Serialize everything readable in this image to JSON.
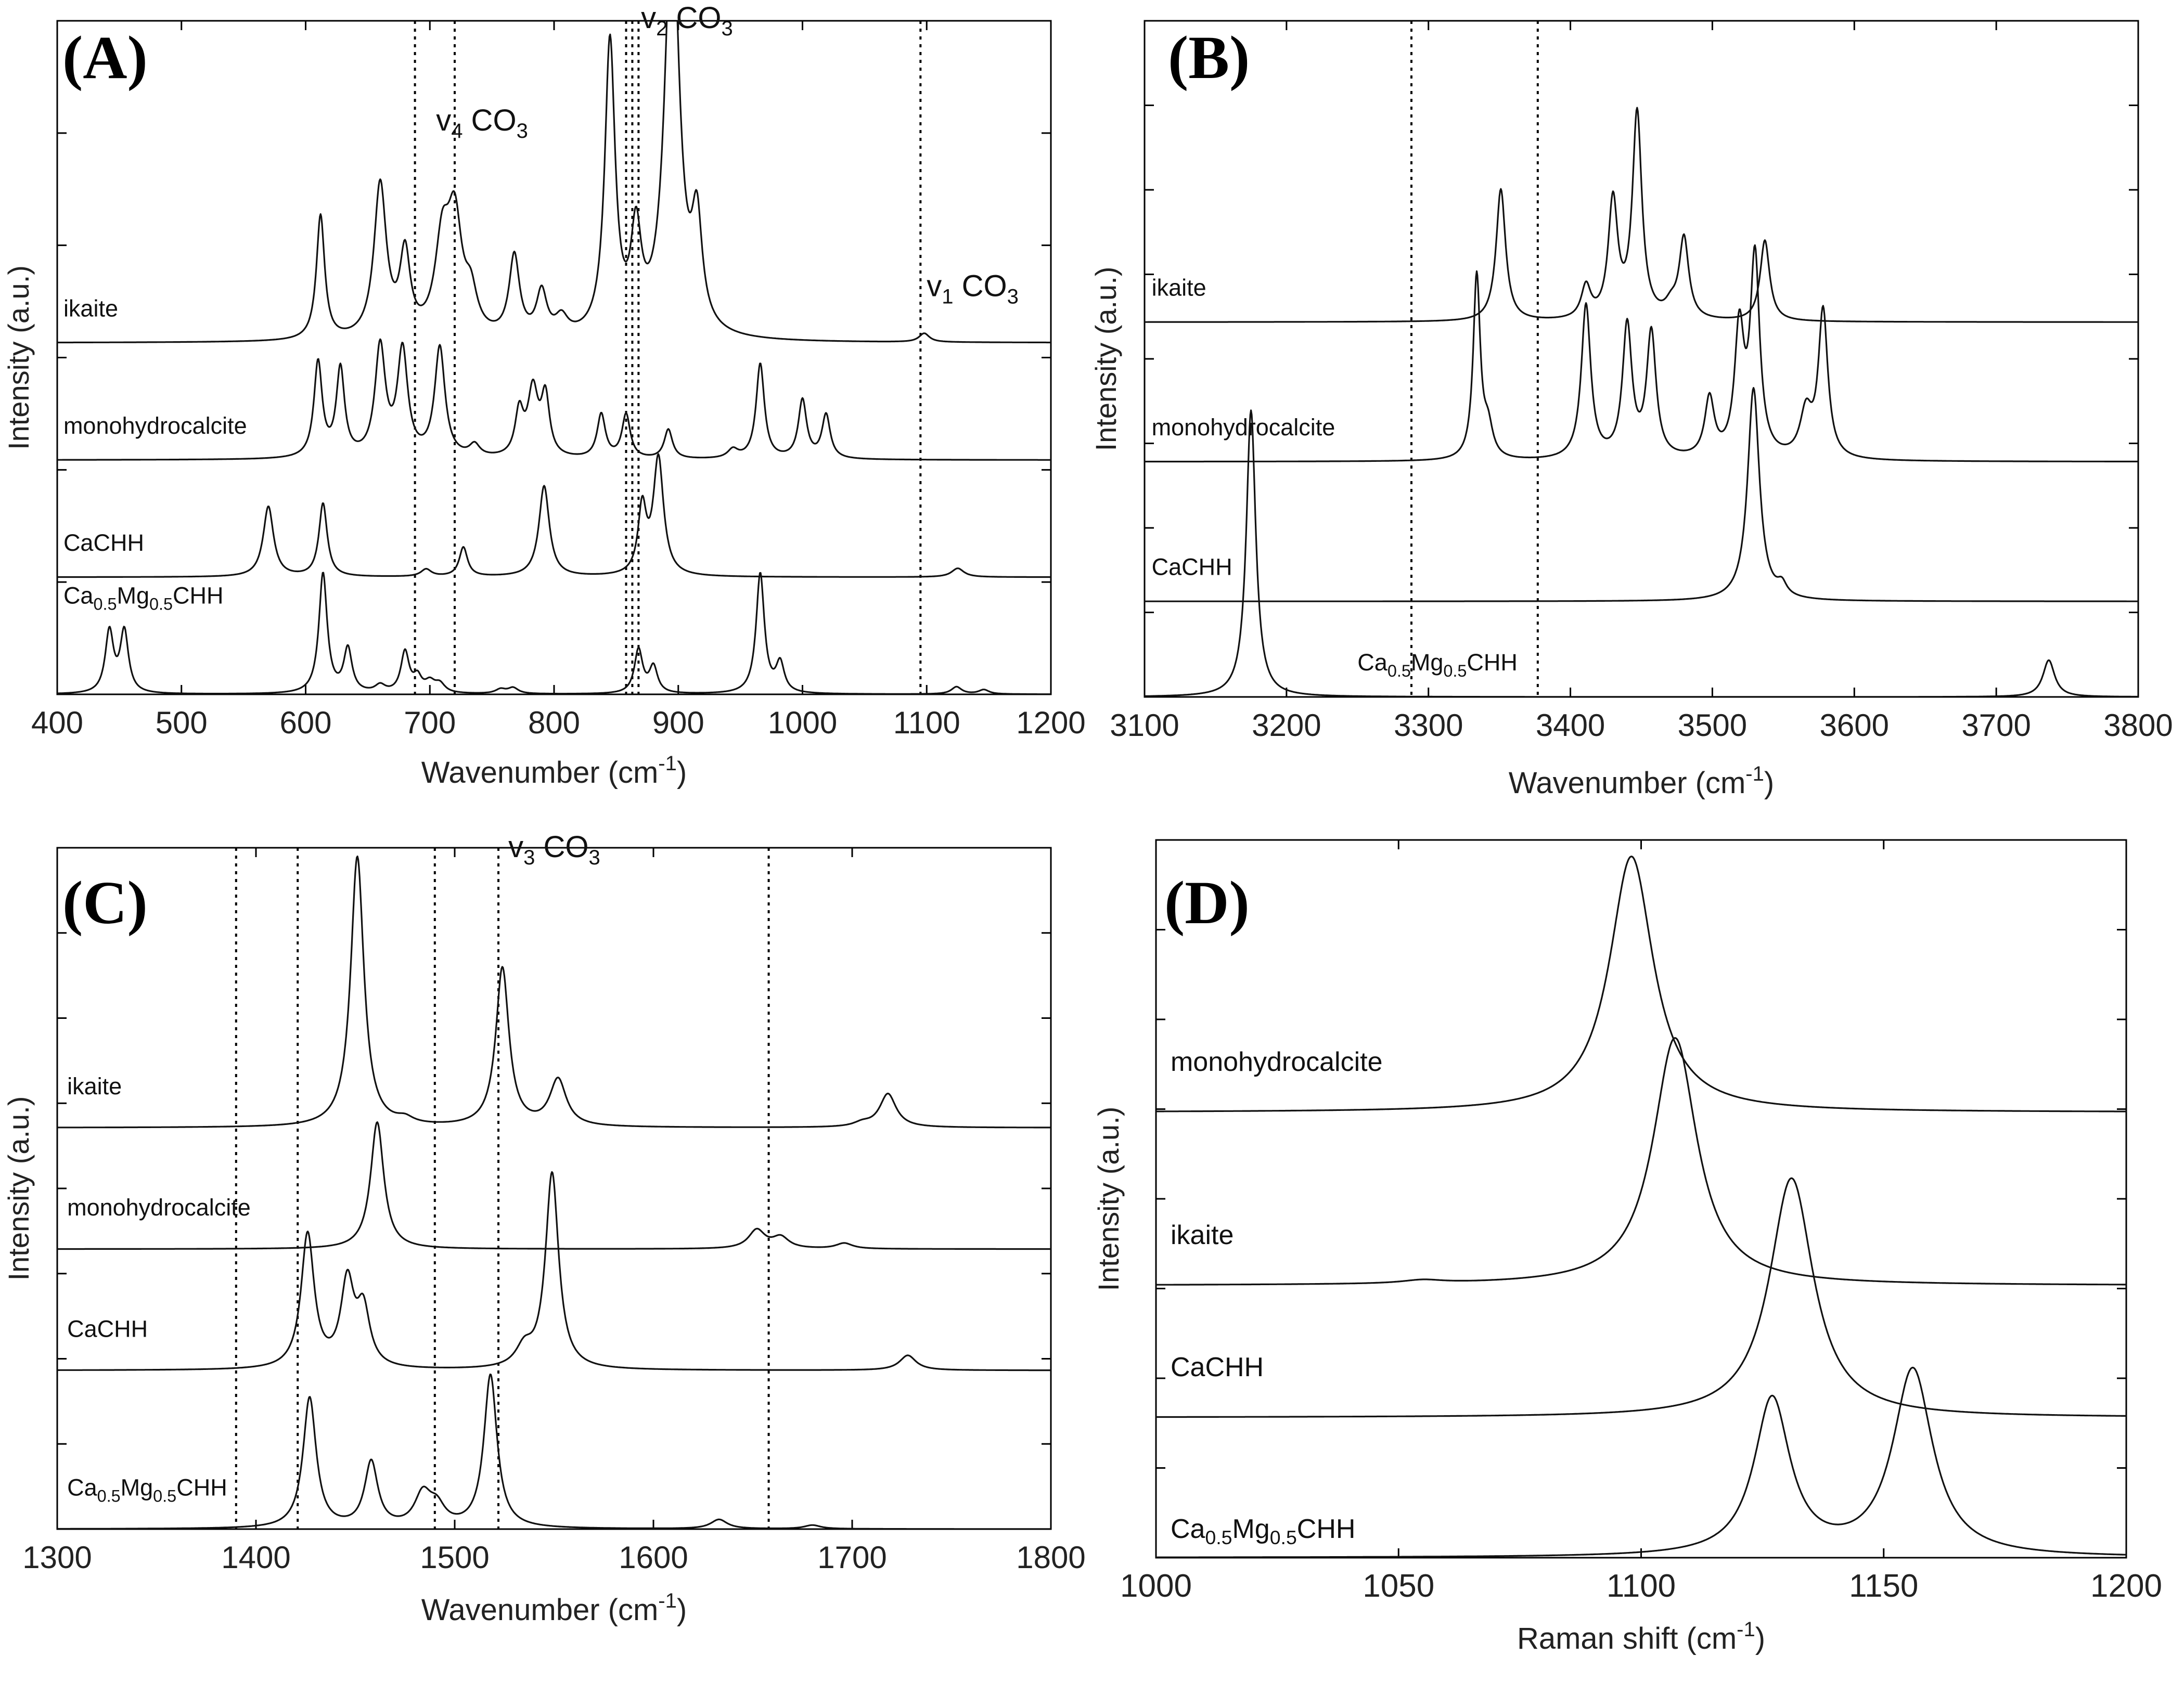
{
  "figure": {
    "panels": [
      "A",
      "B",
      "C",
      "D"
    ]
  },
  "chart_data": [
    {
      "type": "line",
      "panel": "(A)",
      "xlabel": "Wavenumber (cm",
      "xlabel_sup": "-1",
      "xlabel_end": ")",
      "ylabel": "Intensity (a.u.)",
      "xlim": [
        400,
        1200
      ],
      "xticks": [
        "400",
        "500",
        "600",
        "700",
        "800",
        "900",
        "1000",
        "1100",
        "1200"
      ],
      "y_minor_ticks": 5,
      "vlines": [
        688,
        720,
        858,
        863,
        868,
        1095
      ],
      "annotations": [
        {
          "base": "v",
          "sub": "4",
          "text": " CO",
          "sub2": "3",
          "x": 705,
          "y": 3.85
        },
        {
          "base": "v",
          "sub": "2",
          "text": " CO",
          "sub2": "3",
          "x": 870,
          "y": 4.55
        },
        {
          "base": "v",
          "sub": "1",
          "text": " CO",
          "sub2": "3",
          "x": 1100,
          "y": 2.72
        }
      ],
      "series": [
        {
          "name": "ikaite",
          "label_parts": [
            "ikaite"
          ],
          "offset": 2.4,
          "peaks": [
            [
              612,
              0.85,
              4
            ],
            [
              660,
              1.05,
              6
            ],
            [
              680,
              0.55,
              5
            ],
            [
              710,
              0.6,
              7
            ],
            [
              720,
              0.75,
              7
            ],
            [
              733,
              0.25,
              6
            ],
            [
              768,
              0.55,
              5
            ],
            [
              790,
              0.3,
              5
            ],
            [
              806,
              0.12,
              6
            ],
            [
              845,
              2.0,
              5
            ],
            [
              866,
              0.65,
              5
            ],
            [
              895,
              2.9,
              7
            ],
            [
              915,
              0.7,
              5
            ],
            [
              1098,
              0.06,
              5
            ]
          ]
        },
        {
          "name": "monohydrocalcite",
          "label_parts": [
            "monohydrocalcite"
          ],
          "offset": 1.6,
          "peaks": [
            [
              610,
              0.65,
              4
            ],
            [
              628,
              0.6,
              4
            ],
            [
              660,
              0.75,
              5
            ],
            [
              678,
              0.72,
              5
            ],
            [
              708,
              0.75,
              5
            ],
            [
              736,
              0.08,
              5
            ],
            [
              772,
              0.3,
              4
            ],
            [
              783,
              0.45,
              5
            ],
            [
              793,
              0.4,
              4
            ],
            [
              838,
              0.3,
              4
            ],
            [
              858,
              0.3,
              4
            ],
            [
              892,
              0.2,
              4
            ],
            [
              944,
              0.06,
              5
            ],
            [
              966,
              0.65,
              4
            ],
            [
              1000,
              0.4,
              4
            ],
            [
              1019,
              0.3,
              4
            ]
          ]
        },
        {
          "name": "CaCHH",
          "label_parts": [
            "CaCHH"
          ],
          "offset": 0.8,
          "peaks": [
            [
              570,
              0.48,
              5
            ],
            [
              614,
              0.5,
              4
            ],
            [
              697,
              0.05,
              5
            ],
            [
              727,
              0.2,
              4
            ],
            [
              792,
              0.62,
              5
            ],
            [
              871,
              0.45,
              4
            ],
            [
              884,
              0.8,
              5
            ],
            [
              1125,
              0.06,
              6
            ]
          ]
        },
        {
          "name": "Ca0.5Mg0.5CHH",
          "label_parts": [
            "Ca",
            "0.5",
            "Mg",
            "0.5",
            "CHH"
          ],
          "offset": 0.0,
          "peaks": [
            [
              442,
              0.42,
              4
            ],
            [
              454,
              0.42,
              4
            ],
            [
              614,
              0.82,
              4
            ],
            [
              634,
              0.3,
              4
            ],
            [
              660,
              0.05,
              5
            ],
            [
              680,
              0.28,
              4
            ],
            [
              690,
              0.1,
              4
            ],
            [
              700,
              0.07,
              5
            ],
            [
              708,
              0.06,
              5
            ],
            [
              757,
              0.03,
              5
            ],
            [
              767,
              0.04,
              5
            ],
            [
              868,
              0.3,
              4
            ],
            [
              880,
              0.18,
              4
            ],
            [
              966,
              0.82,
              4
            ],
            [
              982,
              0.2,
              4
            ],
            [
              1124,
              0.05,
              5
            ],
            [
              1146,
              0.03,
              5
            ]
          ]
        }
      ]
    },
    {
      "type": "line",
      "panel": "(B)",
      "xlabel": "Wavenumber (cm",
      "xlabel_sup": "-1",
      "xlabel_end": ")",
      "ylabel": "Intensity (a.u.)",
      "xlim": [
        3100,
        3800
      ],
      "xticks": [
        "3100",
        "3200",
        "3300",
        "3400",
        "3500",
        "3600",
        "3700",
        "3800"
      ],
      "y_minor_ticks": 7,
      "vlines": [
        3288,
        3377
      ],
      "annotations": [],
      "series": [
        {
          "name": "ikaite",
          "label_parts": [
            "ikaite"
          ],
          "offset": 2.55,
          "peaks": [
            [
              3351,
              0.9,
              4
            ],
            [
              3411,
              0.22,
              4
            ],
            [
              3430,
              0.8,
              4
            ],
            [
              3447,
              1.4,
              4
            ],
            [
              3471,
              0.08,
              5
            ],
            [
              3480,
              0.55,
              4
            ],
            [
              3537,
              0.55,
              4
            ]
          ]
        },
        {
          "name": "monohydrocalcite",
          "label_parts": [
            "monohydrocalcite"
          ],
          "offset": 1.6,
          "peaks": [
            [
              3334,
              1.25,
              3
            ],
            [
              3342,
              0.2,
              4
            ],
            [
              3411,
              1.05,
              4
            ],
            [
              3440,
              0.9,
              4
            ],
            [
              3457,
              0.85,
              4
            ],
            [
              3498,
              0.4,
              4
            ],
            [
              3519,
              0.85,
              4
            ],
            [
              3530,
              1.35,
              4
            ],
            [
              3566,
              0.3,
              5
            ],
            [
              3578,
              1.0,
              4
            ]
          ]
        },
        {
          "name": "CaCHH",
          "label_parts": [
            "CaCHH"
          ],
          "offset": 0.65,
          "peaks": [
            [
              3529,
              1.45,
              5
            ],
            [
              3549,
              0.08,
              4
            ]
          ]
        },
        {
          "name": "Ca0.5Mg0.5CHH",
          "label_parts": [
            "Ca",
            "0.5",
            "Mg",
            "0.5",
            "CHH"
          ],
          "offset": 0.0,
          "peaks": [
            [
              3175,
              1.95,
              4
            ],
            [
              3737,
              0.25,
              5
            ]
          ]
        }
      ]
    },
    {
      "type": "line",
      "panel": "(C)",
      "xlabel": "Wavenumber (cm",
      "xlabel_sup": "-1",
      "xlabel_end": ")",
      "ylabel": "Intensity (a.u.)",
      "xlim": [
        1300,
        1800
      ],
      "xticks": [
        "1300",
        "1400",
        "1500",
        "1600",
        "1700",
        "1800"
      ],
      "y_minor_ticks": 7,
      "vlines": [
        1390,
        1421,
        1490,
        1522,
        1658
      ],
      "annotations": [
        {
          "base": "v",
          "sub": "3",
          "text": " CO",
          "sub2": "3",
          "x": 1527,
          "y": 3.6
        }
      ],
      "series": [
        {
          "name": "ikaite",
          "label_parts": [
            "ikaite"
          ],
          "offset": 2.15,
          "peaks": [
            [
              1451,
              1.45,
              4
            ],
            [
              1475,
              0.03,
              5
            ],
            [
              1524,
              0.85,
              4
            ],
            [
              1552,
              0.25,
              5
            ],
            [
              1705,
              0.02,
              5
            ],
            [
              1718,
              0.18,
              5
            ]
          ]
        },
        {
          "name": "monohydrocalcite",
          "label_parts": [
            "monohydrocalcite"
          ],
          "offset": 1.5,
          "peaks": [
            [
              1461,
              0.68,
              4
            ],
            [
              1652,
              0.1,
              5
            ],
            [
              1664,
              0.06,
              5
            ],
            [
              1696,
              0.03,
              5
            ]
          ]
        },
        {
          "name": "CaCHH",
          "label_parts": [
            "CaCHH"
          ],
          "offset": 0.85,
          "peaks": [
            [
              1426,
              0.72,
              4
            ],
            [
              1446,
              0.45,
              4
            ],
            [
              1454,
              0.3,
              4
            ],
            [
              1535,
              0.1,
              5
            ],
            [
              1549,
              1.05,
              4
            ],
            [
              1728,
              0.08,
              5
            ]
          ]
        },
        {
          "name": "Ca0.5Mg0.5CHH",
          "label_parts": [
            "Ca",
            "0.5",
            "Mg",
            "0.5",
            "CHH"
          ],
          "offset": 0.0,
          "peaks": [
            [
              1427,
              0.7,
              4
            ],
            [
              1458,
              0.35,
              4
            ],
            [
              1484,
              0.17,
              5
            ],
            [
              1491,
              0.1,
              5
            ],
            [
              1518,
              0.82,
              4
            ],
            [
              1633,
              0.05,
              5
            ],
            [
              1680,
              0.02,
              5
            ]
          ]
        }
      ]
    },
    {
      "type": "line",
      "panel": "(D)",
      "xlabel": "Raman shift (cm",
      "xlabel_sup": "-1",
      "xlabel_end": ")",
      "ylabel": "Intensity (a.u.)",
      "xlim": [
        1000,
        1200
      ],
      "xticks": [
        "1000",
        "1050",
        "1100",
        "1150",
        "1200"
      ],
      "y_minor_ticks": 7,
      "vlines": [],
      "annotations": [],
      "series": [
        {
          "name": "monohydrocalcite",
          "label_parts": [
            "monohydrocalcite"
          ],
          "offset": 2.7,
          "peaks": [
            [
              1098,
              1.55,
              5.5
            ]
          ]
        },
        {
          "name": "ikaite",
          "label_parts": [
            "ikaite"
          ],
          "offset": 1.65,
          "peaks": [
            [
              1055,
              0.02,
              5
            ],
            [
              1107,
              1.5,
              5.5
            ]
          ]
        },
        {
          "name": "CaCHH",
          "label_parts": [
            "CaCHH"
          ],
          "offset": 0.85,
          "peaks": [
            [
              1131,
              1.45,
              5.5
            ]
          ]
        },
        {
          "name": "Ca0.5Mg0.5CHH",
          "label_parts": [
            "Ca",
            "0.5",
            "Mg",
            "0.5",
            "CHH"
          ],
          "offset": 0.0,
          "peaks": [
            [
              1127,
              0.95,
              4.5
            ],
            [
              1156,
              1.13,
              5
            ]
          ]
        }
      ]
    }
  ]
}
